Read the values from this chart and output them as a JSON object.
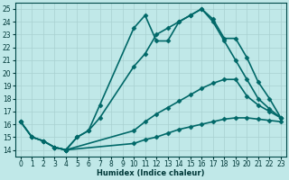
{
  "xlabel": "Humidex (Indice chaleur)",
  "xlim": [
    -0.5,
    23.5
  ],
  "ylim": [
    13.5,
    25.5
  ],
  "xticks": [
    0,
    1,
    2,
    3,
    4,
    5,
    6,
    7,
    8,
    9,
    10,
    11,
    12,
    13,
    14,
    15,
    16,
    17,
    18,
    19,
    20,
    21,
    22,
    23
  ],
  "yticks": [
    14,
    15,
    16,
    17,
    18,
    19,
    20,
    21,
    22,
    23,
    24,
    25
  ],
  "bg_color": "#c0e8e8",
  "line_color": "#006868",
  "grid_color": "#a8d0d0",
  "lines": [
    {
      "x": [
        0,
        1,
        2,
        3,
        4,
        5,
        6,
        7,
        10,
        11,
        12,
        13,
        14,
        15,
        16,
        17,
        18,
        19,
        20,
        21,
        22,
        23
      ],
      "y": [
        16.2,
        15.0,
        14.7,
        14.2,
        14.0,
        15.0,
        15.5,
        17.5,
        23.5,
        24.5,
        22.5,
        22.5,
        24.0,
        24.5,
        25.0,
        24.2,
        22.7,
        22.7,
        21.2,
        19.3,
        18.0,
        16.5
      ],
      "markersize": 2.5,
      "linewidth": 1.2
    },
    {
      "x": [
        3,
        4,
        5,
        6,
        7,
        10,
        11,
        12,
        13,
        14,
        15,
        16,
        17,
        18,
        19,
        20,
        21,
        22,
        23
      ],
      "y": [
        14.2,
        14.0,
        15.0,
        15.5,
        16.5,
        20.5,
        21.5,
        23.0,
        23.5,
        24.0,
        24.5,
        25.0,
        24.0,
        22.5,
        21.0,
        19.5,
        18.0,
        17.2,
        16.5
      ],
      "markersize": 2.5,
      "linewidth": 1.2
    },
    {
      "x": [
        0,
        1,
        2,
        3,
        4,
        10,
        11,
        12,
        13,
        14,
        15,
        16,
        17,
        18,
        19,
        20,
        21,
        22,
        23
      ],
      "y": [
        16.2,
        15.0,
        14.7,
        14.2,
        14.0,
        15.5,
        16.2,
        16.8,
        17.3,
        17.8,
        18.3,
        18.8,
        19.2,
        19.5,
        19.5,
        18.2,
        17.5,
        17.0,
        16.5
      ],
      "markersize": 2.5,
      "linewidth": 1.2
    },
    {
      "x": [
        0,
        1,
        2,
        3,
        4,
        10,
        11,
        12,
        13,
        14,
        15,
        16,
        17,
        18,
        19,
        20,
        21,
        22,
        23
      ],
      "y": [
        16.2,
        15.0,
        14.7,
        14.2,
        14.0,
        14.5,
        14.8,
        15.0,
        15.3,
        15.6,
        15.8,
        16.0,
        16.2,
        16.4,
        16.5,
        16.5,
        16.4,
        16.3,
        16.2
      ],
      "markersize": 2.5,
      "linewidth": 1.2
    }
  ]
}
